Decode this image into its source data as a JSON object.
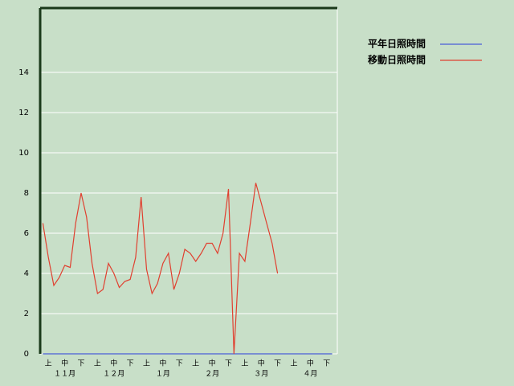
{
  "chart_data": {
    "type": "line",
    "categories": [
      null,
      "上",
      null,
      null,
      "中",
      null,
      null,
      "下",
      null,
      null,
      "上",
      null,
      null,
      "中",
      null,
      null,
      "下",
      null,
      null,
      "上",
      null,
      null,
      "中",
      null,
      null,
      "下",
      null,
      null,
      "上",
      null,
      null,
      "中",
      null,
      null,
      "下",
      null,
      null,
      "上",
      null,
      null,
      "中",
      null,
      null,
      "下",
      null,
      null,
      "上",
      null,
      null,
      "中",
      null,
      null,
      "下",
      null
    ],
    "month_labels": [
      "１１月",
      "１２月",
      "１月",
      "２月",
      "３月",
      "４月"
    ],
    "series": [
      {
        "name": "平年日照時間",
        "color": "#4a5ed8",
        "values": [
          0,
          0,
          0,
          0,
          0,
          0,
          0,
          0,
          0,
          0,
          0,
          0,
          0,
          0,
          0,
          0,
          0,
          0,
          0,
          0,
          0,
          0,
          0,
          0,
          0,
          0,
          0,
          0,
          0,
          0,
          0,
          0,
          0,
          0,
          0,
          0,
          0,
          0,
          0,
          0,
          0,
          0,
          0,
          0,
          0,
          0,
          0,
          0,
          0,
          0,
          0,
          0,
          0,
          0
        ]
      },
      {
        "name": "移動日照時間",
        "color": "#e04030",
        "values": [
          6.5,
          4.8,
          3.4,
          3.8,
          4.4,
          4.3,
          6.5,
          8.0,
          6.8,
          4.5,
          3.0,
          3.2,
          4.5,
          4.0,
          3.3,
          3.6,
          3.7,
          4.8,
          7.8,
          4.2,
          3.0,
          3.5,
          4.5,
          5.0,
          3.2,
          4.0,
          5.2,
          5.0,
          4.6,
          5.0,
          5.5,
          5.5,
          5.0,
          6.0,
          8.2,
          0,
          5.0,
          4.6,
          6.5,
          8.5,
          7.5,
          6.5,
          5.5,
          4.0,
          null,
          null,
          null,
          null,
          null,
          null,
          null,
          null,
          null,
          null
        ]
      }
    ],
    "ylim": [
      0,
      17.2
    ],
    "yticks": [
      0,
      2,
      4,
      6,
      8,
      10,
      12,
      14
    ],
    "grid": true
  }
}
